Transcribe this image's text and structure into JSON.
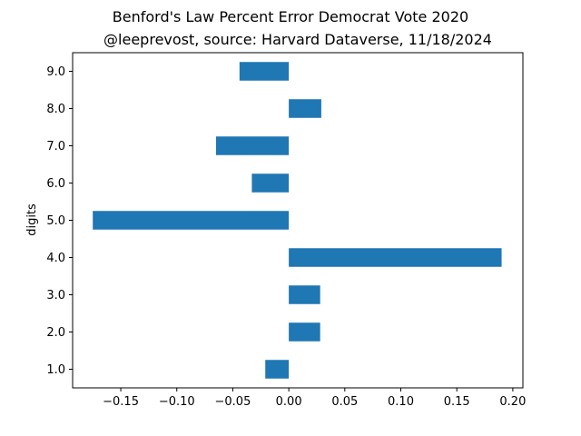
{
  "chart_data": {
    "type": "bar",
    "orientation": "horizontal",
    "title": "Benford's Law Percent Error Democrat Vote 2020",
    "subtitle": "@leeprevost, source: Harvard Dataverse, 11/18/2024",
    "xlabel": "",
    "ylabel": "digits",
    "categories": [
      "1.0",
      "2.0",
      "3.0",
      "4.0",
      "5.0",
      "6.0",
      "7.0",
      "8.0",
      "9.0"
    ],
    "values": [
      -0.021,
      0.028,
      0.028,
      0.19,
      -0.175,
      -0.033,
      -0.065,
      0.029,
      -0.044
    ],
    "xlim": [
      -0.193,
      0.209
    ],
    "xticks": [
      -0.15,
      -0.1,
      -0.05,
      0.0,
      0.05,
      0.1,
      0.15,
      0.2
    ],
    "xtick_labels": [
      "−0.15",
      "−0.10",
      "−0.05",
      "0.00",
      "0.05",
      "0.10",
      "0.15",
      "0.20"
    ],
    "grid": false,
    "bar_color": "#1f77b4"
  }
}
